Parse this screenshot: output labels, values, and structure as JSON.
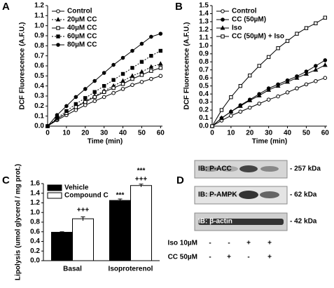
{
  "chart_data": [
    {
      "type": "line",
      "label": "A",
      "xlabel": "Time (min)",
      "ylabel": "DCF Fluorescence (A.F.U.)",
      "x": [
        0,
        5,
        10,
        15,
        20,
        25,
        30,
        35,
        40,
        45,
        50,
        55,
        60
      ],
      "xlim": [
        0,
        61
      ],
      "xticks": [
        0,
        10,
        20,
        30,
        40,
        50,
        60
      ],
      "ylim": [
        0,
        1.2
      ],
      "yticks": [
        {
          "value": 0,
          "label": "0.0"
        },
        0.1,
        0.2,
        0.3,
        0.4,
        0.5,
        0.6,
        0.7,
        0.8,
        0.9,
        {
          "value": 1,
          "label": "1.0"
        },
        1.1,
        1.2
      ],
      "series": [
        {
          "name": "Control",
          "color": "#000000",
          "marker": "circle-open",
          "dashed": false,
          "values": [
            0,
            0.06,
            0.11,
            0.16,
            0.21,
            0.25,
            0.29,
            0.33,
            0.37,
            0.41,
            0.44,
            0.47,
            0.5
          ]
        },
        {
          "name": "20µM CC",
          "color": "#000000",
          "marker": "triangle",
          "dashed": true,
          "values": [
            0,
            0.07,
            0.13,
            0.19,
            0.25,
            0.3,
            0.35,
            0.4,
            0.45,
            0.5,
            0.54,
            0.59,
            0.62
          ]
        },
        {
          "name": "40µM CC",
          "color": "#000000",
          "marker": "square-open",
          "dashed": false,
          "values": [
            0,
            0.07,
            0.13,
            0.19,
            0.24,
            0.29,
            0.34,
            0.38,
            0.42,
            0.47,
            0.51,
            0.55,
            0.58
          ]
        },
        {
          "name": "60µM CC",
          "color": "#000000",
          "marker": "square",
          "dashed": true,
          "values": [
            0,
            0.08,
            0.15,
            0.22,
            0.28,
            0.34,
            0.4,
            0.46,
            0.52,
            0.58,
            0.64,
            0.7,
            0.75
          ]
        },
        {
          "name": "80µM CC",
          "color": "#000000",
          "marker": "circle",
          "dashed": false,
          "values": [
            0,
            0.11,
            0.2,
            0.29,
            0.37,
            0.45,
            0.53,
            0.61,
            0.68,
            0.75,
            0.82,
            0.89,
            0.92
          ]
        }
      ]
    },
    {
      "type": "line",
      "label": "B",
      "xlabel": "Time (min)",
      "ylabel": "DCF Fluorescence (A.F.U.)",
      "x": [
        0,
        5,
        10,
        15,
        20,
        25,
        30,
        35,
        40,
        45,
        50,
        55,
        60
      ],
      "xlim": [
        0,
        61
      ],
      "xticks": [
        0,
        10,
        20,
        30,
        40,
        50,
        60
      ],
      "ylim": [
        0,
        1.5
      ],
      "yticks": [
        {
          "value": 0,
          "label": "0.0"
        },
        0.1,
        0.2,
        0.3,
        0.4,
        0.5,
        0.6,
        0.7,
        0.8,
        0.9,
        {
          "value": 1,
          "label": "1.0"
        },
        1.1,
        1.2,
        1.3,
        1.4,
        1.5
      ],
      "series": [
        {
          "name": "Control",
          "color": "#000000",
          "marker": "circle-open",
          "dashed": false,
          "values": [
            0,
            0.07,
            0.13,
            0.18,
            0.23,
            0.28,
            0.33,
            0.37,
            0.42,
            0.47,
            0.52,
            0.56,
            0.6
          ]
        },
        {
          "name": "CC (50µM)",
          "color": "#000000",
          "marker": "circle",
          "dashed": false,
          "values": [
            0,
            0.1,
            0.18,
            0.26,
            0.33,
            0.4,
            0.47,
            0.52,
            0.57,
            0.62,
            0.68,
            0.75,
            0.82
          ]
        },
        {
          "name": "Iso",
          "color": "#000000",
          "marker": "triangle",
          "dashed": false,
          "values": [
            0,
            0.1,
            0.18,
            0.25,
            0.32,
            0.38,
            0.45,
            0.5,
            0.55,
            0.6,
            0.65,
            0.7,
            0.76
          ]
        },
        {
          "name": "CC (50µM) + Iso",
          "color": "#000000",
          "marker": "square-open",
          "dashed": false,
          "values": [
            0,
            0.2,
            0.36,
            0.5,
            0.63,
            0.75,
            0.86,
            0.97,
            1.06,
            1.15,
            1.22,
            1.28,
            1.35
          ]
        }
      ]
    },
    {
      "type": "bar",
      "label": "C",
      "ylabel": "Lipolysis (umol glycerol / mg prot.)",
      "categories": [
        "Basal",
        "Isoproterenol"
      ],
      "ylim": [
        0,
        1.6
      ],
      "yticks": [
        {
          "value": 0,
          "label": "0.0"
        },
        0.2,
        0.4,
        0.6,
        0.8,
        {
          "value": 1,
          "label": "1.0"
        },
        1.2,
        1.4,
        1.6
      ],
      "series": [
        {
          "name": "Vehicle",
          "color": "#000000",
          "values": [
            0.59,
            1.25
          ],
          "errors": [
            0.01,
            0.03
          ]
        },
        {
          "name": "Compound C",
          "color": "#ffffff",
          "values": [
            0.87,
            1.56
          ],
          "errors": [
            0.04,
            0.03
          ]
        }
      ],
      "annotations": [
        "+++",
        "***",
        "***",
        "+++"
      ]
    }
  ],
  "blot": {
    "label": "D",
    "rows": [
      {
        "antibody": "IB: P-ACC",
        "size": "- 257 kDa"
      },
      {
        "antibody": "IB: P-AMPK",
        "size": "- 62 kDa"
      },
      {
        "antibody": "IB: β-actin",
        "size": "- 42 kDa"
      }
    ],
    "treatments": [
      {
        "name": "Iso 10µM",
        "signs": [
          "-",
          "-",
          "+",
          "+"
        ]
      },
      {
        "name": "CC 50µM",
        "signs": [
          "-",
          "+",
          "-",
          "+"
        ]
      }
    ]
  }
}
